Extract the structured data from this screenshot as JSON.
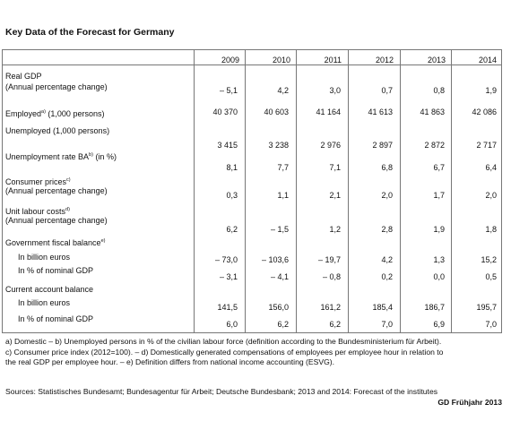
{
  "title": "Key Data of the Forecast for Germany",
  "years": [
    "2009",
    "2010",
    "2011",
    "2012",
    "2013",
    "2014"
  ],
  "rows": [
    {
      "label": "Real GDP",
      "label2": "(Annual percentage change)",
      "values": [
        "– 5,1",
        "4,2",
        "3,0",
        "0,7",
        "0,8",
        "1,9"
      ]
    },
    {
      "label": "Employed",
      "sup": "a)",
      "suffix": " (1,000 persons)",
      "values": [
        "40 370",
        "40 603",
        "41 164",
        "41 613",
        "41 863",
        "42 086"
      ]
    },
    {
      "label": "Unemployed (1,000 persons)",
      "values": [
        "3 415",
        "3 238",
        "2 976",
        "2 897",
        "2 872",
        "2 717"
      ]
    },
    {
      "label": "Unemployment rate BA",
      "sup": "b)",
      "suffix": " (in %)",
      "values": [
        "8,1",
        "7,7",
        "7,1",
        "6,8",
        "6,7",
        "6,4"
      ]
    },
    {
      "label": "Consumer prices",
      "sup": "c)",
      "label2": "(Annual percentage change)",
      "values": [
        "0,3",
        "1,1",
        "2,1",
        "2,0",
        "1,7",
        "2,0"
      ]
    },
    {
      "label": "Unit labour costs",
      "sup": "d)",
      "label2": "(Annual percentage change)",
      "values": [
        "6,2",
        "– 1,5",
        "1,2",
        "2,8",
        "1,9",
        "1,8"
      ]
    },
    {
      "label": "Government fiscal balance",
      "sup": "e)"
    },
    {
      "label": "In billion euros",
      "values": [
        "– 73,0",
        "– 103,6",
        "– 19,7",
        "4,2",
        "1,3",
        "15,2"
      ]
    },
    {
      "label": "In % of nominal GDP",
      "values": [
        "– 3,1",
        "– 4,1",
        "– 0,8",
        "0,2",
        "0,0",
        "0,5"
      ]
    },
    {
      "label": "Current account balance"
    },
    {
      "label": "In billion euros",
      "values": [
        "141,5",
        "156,0",
        "161,2",
        "185,4",
        "186,7",
        "195,7"
      ]
    },
    {
      "label": "In % of nominal GDP",
      "values": [
        "6,0",
        "6,2",
        "6,2",
        "7,0",
        "6,9",
        "7,0"
      ]
    }
  ],
  "footnotes": {
    "line1": "a) Domestic – b) Unemployed persons in % of the civilian labour force (definition according to the Bundesministerium für Arbeit).",
    "line2": "c) Consumer price index (2012=100). – d) Domestically generated compensations of employees per employee hour in relation to",
    "line3": "the real GDP per employee hour. – e) Definition differs from national income accounting (ESVG)."
  },
  "source": "Sources: Statistisches Bundesamt; Bundesagentur für Arbeit; Deutsche Bundesbank; 2013 and 2014: Forecast of the institutes",
  "credit": "GD Frühjahr 2013"
}
